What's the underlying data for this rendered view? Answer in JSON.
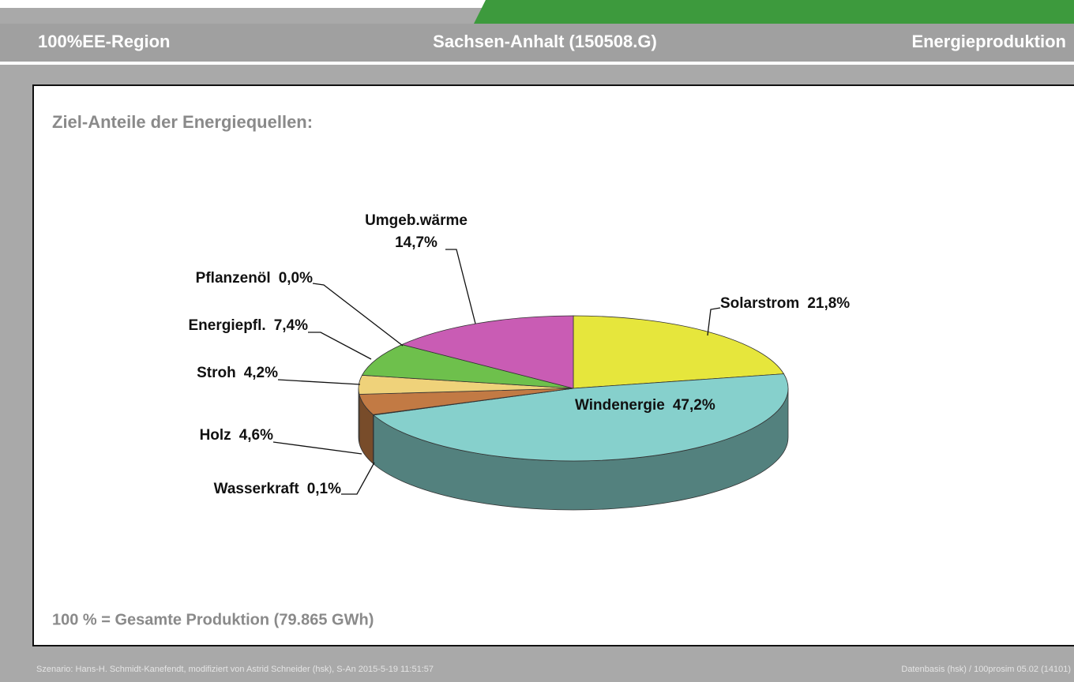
{
  "header": {
    "left": "100%EE-Region",
    "center": "Sachsen-Anhalt (150508.G)",
    "right": "Energieproduktion"
  },
  "chart_data": {
    "type": "pie",
    "title": "Ziel-Anteile der Energiequellen:",
    "note": "100 % = Gesamte Produktion (79.865 GWh)",
    "categories": [
      "Solarstrom",
      "Windenergie",
      "Wasserkraft",
      "Holz",
      "Stroh",
      "Energiepfl.",
      "Pflanzenöl",
      "Umgeb.wärme"
    ],
    "values": [
      21.8,
      47.2,
      0.1,
      4.6,
      4.2,
      7.4,
      0.0,
      14.7
    ],
    "value_labels": [
      "21,8%",
      "47,2%",
      "0,1%",
      "4,6%",
      "4,2%",
      "7,4%",
      "0,0%",
      "14,7%"
    ],
    "colors": [
      "#e6e63c",
      "#86d0cc",
      "#2a4f8a",
      "#c27a44",
      "#efd27a",
      "#6ec04c",
      "#e8e070",
      "#c95cb4"
    ]
  },
  "footer": {
    "left": "Szenario: Hans-H. Schmidt-Kanefendt, modifiziert von Astrid Schneider (hsk), S-An 2015-5-19 11:51:57",
    "right": "Datenbasis (hsk) / 100prosim 05.02 (14101)"
  }
}
